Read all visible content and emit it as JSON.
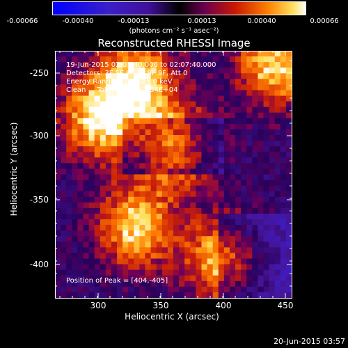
{
  "colorbar": {
    "ticks": [
      "-0.00066",
      "-0.00040",
      "-0.00013",
      "0.00013",
      "0.00040",
      "0.00066"
    ],
    "units": "(photons cm⁻² s⁻¹ asec⁻²)"
  },
  "plot": {
    "title": "Reconstructed RHESSI Image",
    "info_lines": [
      "19-Jun-2015 02:01:40.000 to 02:07:40.000",
      "Detectors: 3F 5F 6F 7F 8F 9F, Att 0",
      "Energy Range: 12.0 - 25.0 keV",
      "Clean     Total counts: 1.54E+04"
    ],
    "peak_text": "Position of Peak = [404,-405]",
    "xlabel": "Heliocentric X (arcsec)",
    "ylabel": "Heliocentric Y (arcsec)",
    "xticks": [
      "300",
      "350",
      "400",
      "450"
    ],
    "yticks": [
      "-250",
      "-300",
      "-350",
      "-400"
    ]
  },
  "footer": {
    "timestamp": "20-Jun-2015 03:57"
  },
  "chart_data": {
    "type": "heatmap",
    "title": "Reconstructed RHESSI Image",
    "xlabel": "Heliocentric X (arcsec)",
    "ylabel": "Heliocentric Y (arcsec)",
    "xlim": [
      265,
      453
    ],
    "ylim": [
      -423,
      -239
    ],
    "colorbar_range": [
      -0.00066,
      0.00066
    ],
    "peak": [
      404,
      -405
    ],
    "bright_sources": [
      [
        330,
        -260
      ],
      [
        300,
        -290
      ],
      [
        360,
        -310
      ],
      [
        330,
        -370
      ],
      [
        400,
        -395
      ],
      [
        440,
        -250
      ]
    ],
    "colors": {
      "background": "#000000",
      "frame": "#ffffff"
    }
  }
}
